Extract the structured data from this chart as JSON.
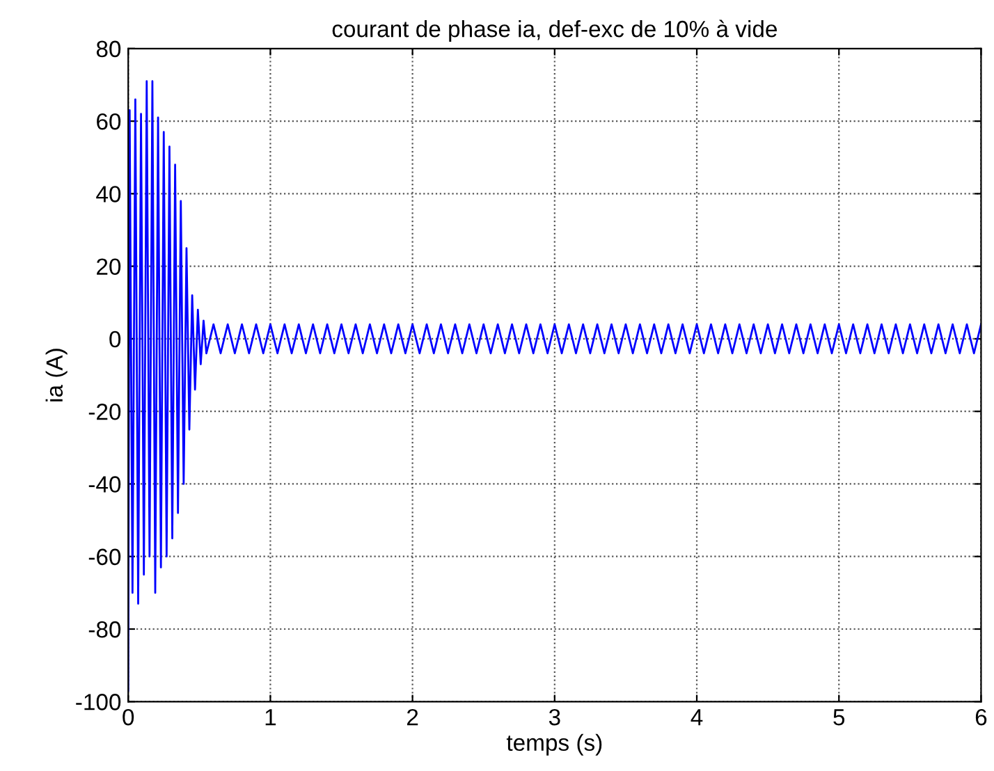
{
  "chart_data": {
    "type": "line",
    "title": "courant de phase ia, def-exc de 10% à vide",
    "xlabel": "temps (s)",
    "ylabel": "ia (A)",
    "xlim": [
      0,
      6
    ],
    "ylim": [
      -100,
      80
    ],
    "xticks": [
      0,
      1,
      2,
      3,
      4,
      5,
      6
    ],
    "yticks": [
      -100,
      -80,
      -60,
      -40,
      -20,
      0,
      20,
      40,
      60,
      80
    ],
    "grid": true,
    "line_style": "solid",
    "series": [
      {
        "color": "#0000ff",
        "x": [
          0,
          0.01,
          0.03,
          0.05,
          0.07,
          0.09,
          0.11,
          0.13,
          0.15,
          0.17,
          0.19,
          0.21,
          0.23,
          0.25,
          0.27,
          0.29,
          0.31,
          0.33,
          0.35,
          0.37,
          0.39,
          0.41,
          0.43,
          0.45,
          0.47,
          0.49,
          0.51,
          0.53,
          0.55,
          0.6,
          0.65,
          0.7,
          0.75,
          0.8,
          0.85,
          0.9,
          0.95,
          1,
          1.05,
          1.1,
          1.15,
          1.2,
          1.25,
          1.3,
          1.35,
          1.4,
          1.45,
          1.5,
          1.55,
          1.6,
          1.65,
          1.7,
          1.75,
          1.8,
          1.85,
          1.9,
          1.95,
          2,
          2.05,
          2.1,
          2.15,
          2.2,
          2.25,
          2.3,
          2.35,
          2.4,
          2.45,
          2.5,
          2.55,
          2.6,
          2.65,
          2.7,
          2.75,
          2.8,
          2.85,
          2.9,
          2.95,
          3,
          3.05,
          3.1,
          3.15,
          3.2,
          3.25,
          3.3,
          3.35,
          3.4,
          3.45,
          3.5,
          3.55,
          3.6,
          3.65,
          3.7,
          3.75,
          3.8,
          3.85,
          3.9,
          3.95,
          4,
          4.05,
          4.1,
          4.15,
          4.2,
          4.25,
          4.3,
          4.35,
          4.4,
          4.45,
          4.5,
          4.55,
          4.6,
          4.65,
          4.7,
          4.75,
          4.8,
          4.85,
          4.9,
          4.95,
          5,
          5.05,
          5.1,
          5.15,
          5.2,
          5.25,
          5.3,
          5.35,
          5.4,
          5.45,
          5.5,
          5.55,
          5.6,
          5.65,
          5.7,
          5.75,
          5.8,
          5.85,
          5.9,
          5.95,
          6
        ],
        "values": [
          -97,
          63,
          -70,
          66,
          -73,
          62,
          -65,
          71,
          -60,
          71,
          -70,
          61,
          -63,
          57,
          -60,
          53,
          -55,
          48,
          -48,
          38,
          -40,
          25,
          -25,
          12,
          -14,
          8,
          -7,
          5,
          -4,
          4,
          -4,
          4,
          -4,
          4,
          -4,
          4,
          -4,
          4,
          -4,
          4,
          -4,
          4,
          -4,
          4,
          -4,
          4,
          -4,
          4,
          -4,
          4,
          -4,
          4,
          -4,
          4,
          -4,
          4,
          -4,
          4,
          -4,
          4,
          -4,
          4,
          -4,
          4,
          -4,
          4,
          -4,
          4,
          -4,
          4,
          -4,
          4,
          -4,
          4,
          -4,
          4,
          -4,
          4,
          -4,
          4,
          -4,
          4,
          -4,
          4,
          -4,
          4,
          -4,
          4,
          -4,
          4,
          -4,
          4,
          -4,
          4,
          -4,
          4,
          -4,
          4,
          -4,
          4,
          -4,
          4,
          -4,
          4,
          -4,
          4,
          -4,
          4,
          -4,
          4,
          -4,
          4,
          -4,
          4,
          -4,
          4,
          -4,
          4,
          -4,
          4,
          -4,
          4,
          -4,
          4,
          -4,
          4,
          -4,
          4,
          -4,
          4,
          -4,
          4,
          -4,
          4,
          -4,
          4,
          -4,
          4
        ]
      }
    ]
  }
}
